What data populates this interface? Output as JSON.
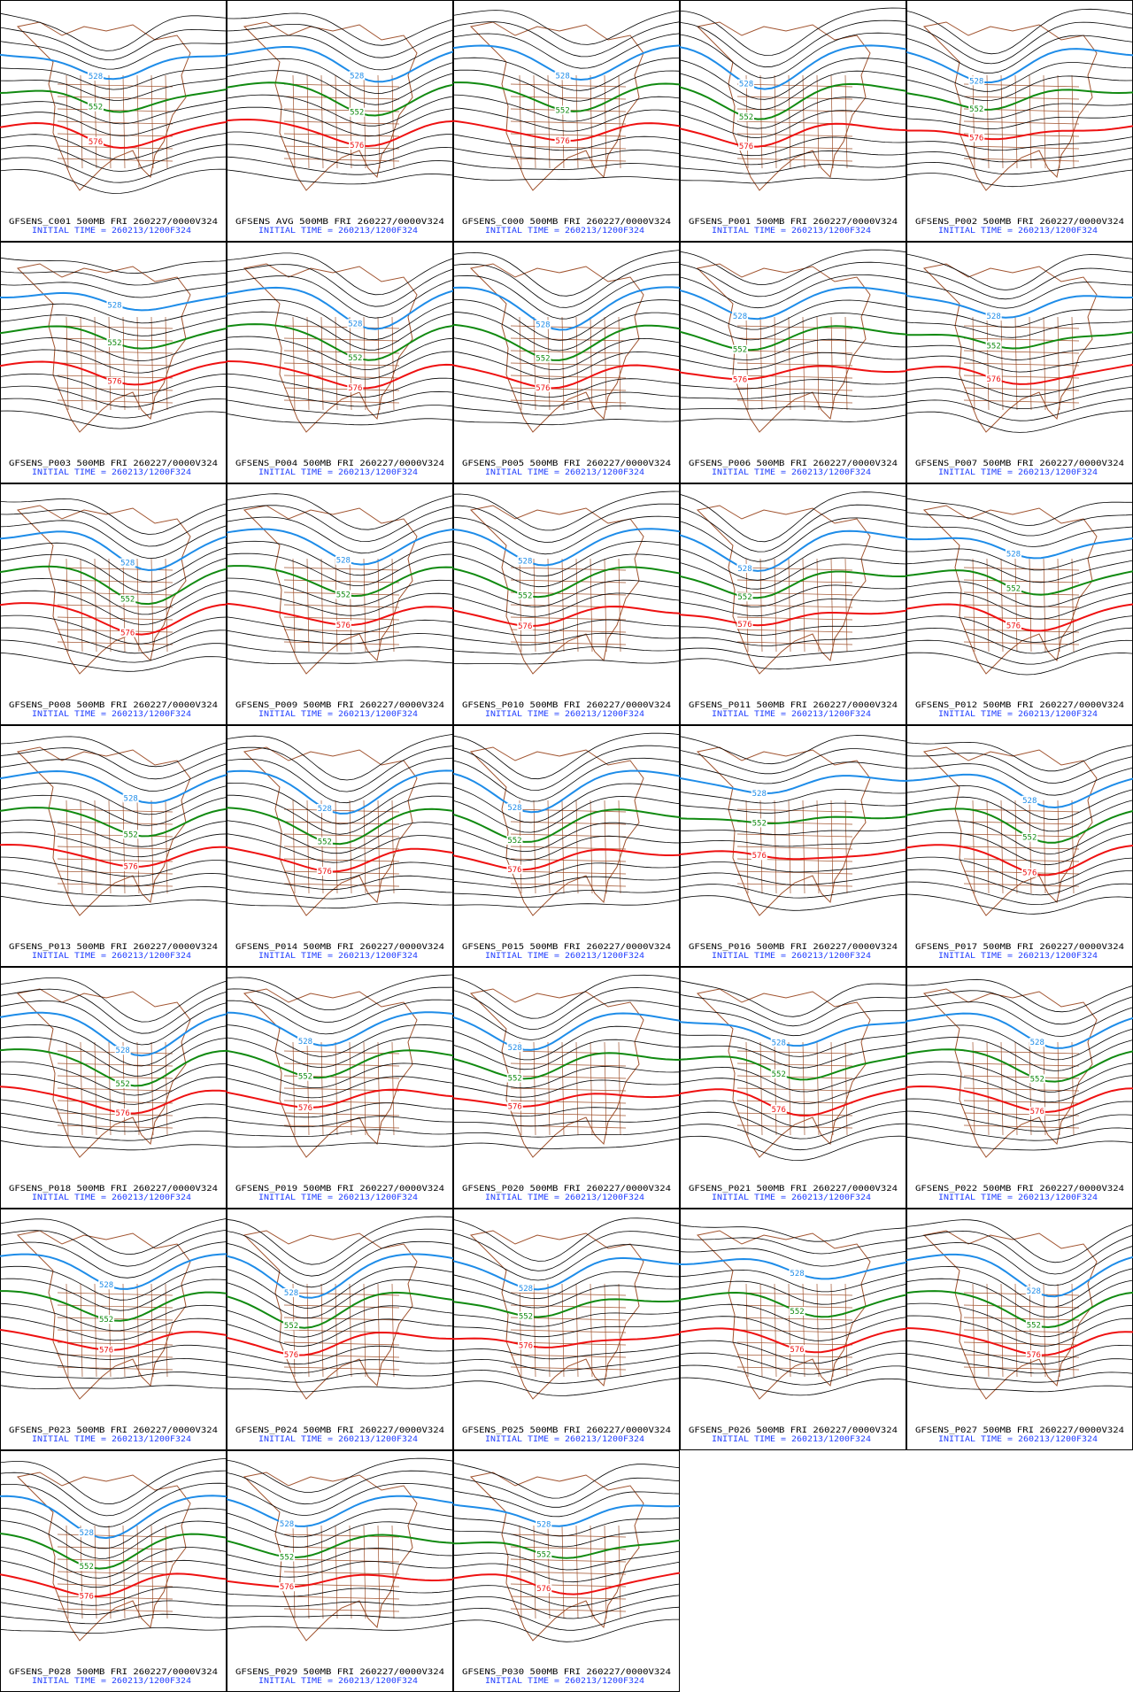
{
  "panels": [
    {
      "title": "GFSENS_C001 500MB FRI 260227/0000V324",
      "init": "INITIAL TIME = 260213/1200F324",
      "contours": [
        528,
        552,
        576
      ]
    },
    {
      "title": "GFSENS AVG 500MB FRI 260227/0000V324",
      "init": "INITIAL TIME = 260213/1200F324",
      "contours": [
        528,
        552,
        576
      ]
    },
    {
      "title": "GFSENS_C000 500MB FRI 260227/0000V324",
      "init": "INITIAL TIME = 260213/1200F324",
      "contours": [
        528,
        552,
        576
      ]
    },
    {
      "title": "GFSENS_P001 500MB FRI 260227/0000V324",
      "init": "INITIAL TIME = 260213/1200F324",
      "contours": [
        528,
        552,
        576
      ]
    },
    {
      "title": "GFSENS_P002 500MB FRI 260227/0000V324",
      "init": "INITIAL TIME = 260213/1200F324",
      "contours": [
        528,
        552,
        576
      ]
    },
    {
      "title": "GFSENS_P003 500MB FRI 260227/0000V324",
      "init": "INITIAL TIME = 260213/1200F324",
      "contours": [
        528,
        552,
        576
      ]
    },
    {
      "title": "GFSENS_P004 500MB FRI 260227/0000V324",
      "init": "INITIAL TIME = 260213/1200F324",
      "contours": [
        528,
        552,
        576
      ]
    },
    {
      "title": "GFSENS_P005 500MB FRI 260227/0000V324",
      "init": "INITIAL TIME = 260213/1200F324",
      "contours": [
        528,
        552,
        576
      ]
    },
    {
      "title": "GFSENS_P006 500MB FRI 260227/0000V324",
      "init": "INITIAL TIME = 260213/1200F324",
      "contours": [
        528,
        552,
        576
      ]
    },
    {
      "title": "GFSENS_P007 500MB FRI 260227/0000V324",
      "init": "INITIAL TIME = 260213/1200F324",
      "contours": [
        528,
        552,
        576
      ]
    },
    {
      "title": "GFSENS_P008 500MB FRI 260227/0000V324",
      "init": "INITIAL TIME = 260213/1200F324",
      "contours": [
        528,
        552,
        576
      ]
    },
    {
      "title": "GFSENS_P009 500MB FRI 260227/0000V324",
      "init": "INITIAL TIME = 260213/1200F324",
      "contours": [
        528,
        552,
        576
      ]
    },
    {
      "title": "GFSENS_P010 500MB FRI 260227/0000V324",
      "init": "INITIAL TIME = 260213/1200F324",
      "contours": [
        528,
        552,
        576
      ]
    },
    {
      "title": "GFSENS_P011 500MB FRI 260227/0000V324",
      "init": "INITIAL TIME = 260213/1200F324",
      "contours": [
        528,
        552,
        576
      ]
    },
    {
      "title": "GFSENS_P012 500MB FRI 260227/0000V324",
      "init": "INITIAL TIME = 260213/1200F324",
      "contours": [
        528,
        552,
        576
      ]
    },
    {
      "title": "GFSENS_P013 500MB FRI 260227/0000V324",
      "init": "INITIAL TIME = 260213/1200F324",
      "contours": [
        528,
        552,
        576
      ]
    },
    {
      "title": "GFSENS_P014 500MB FRI 260227/0000V324",
      "init": "INITIAL TIME = 260213/1200F324",
      "contours": [
        528,
        552,
        576
      ]
    },
    {
      "title": "GFSENS_P015 500MB FRI 260227/0000V324",
      "init": "INITIAL TIME = 260213/1200F324",
      "contours": [
        528,
        552,
        576
      ]
    },
    {
      "title": "GFSENS_P016 500MB FRI 260227/0000V324",
      "init": "INITIAL TIME = 260213/1200F324",
      "contours": [
        528,
        552,
        576
      ]
    },
    {
      "title": "GFSENS_P017 500MB FRI 260227/0000V324",
      "init": "INITIAL TIME = 260213/1200F324",
      "contours": [
        528,
        552,
        576
      ]
    },
    {
      "title": "GFSENS_P018 500MB FRI 260227/0000V324",
      "init": "INITIAL TIME = 260213/1200F324",
      "contours": [
        528,
        552,
        576
      ]
    },
    {
      "title": "GFSENS_P019 500MB FRI 260227/0000V324",
      "init": "INITIAL TIME = 260213/1200F324",
      "contours": [
        528,
        552,
        576
      ]
    },
    {
      "title": "GFSENS_P020 500MB FRI 260227/0000V324",
      "init": "INITIAL TIME = 260213/1200F324",
      "contours": [
        528,
        552,
        576
      ]
    },
    {
      "title": "GFSENS_P021 500MB FRI 260227/0000V324",
      "init": "INITIAL TIME = 260213/1200F324",
      "contours": [
        528,
        552,
        576
      ]
    },
    {
      "title": "GFSENS_P022 500MB FRI 260227/0000V324",
      "init": "INITIAL TIME = 260213/1200F324",
      "contours": [
        528,
        552,
        576
      ]
    },
    {
      "title": "GFSENS_P023 500MB FRI 260227/0000V324",
      "init": "INITIAL TIME = 260213/1200F324",
      "contours": [
        528,
        552,
        576
      ]
    },
    {
      "title": "GFSENS_P024 500MB FRI 260227/0000V324",
      "init": "INITIAL TIME = 260213/1200F324",
      "contours": [
        528,
        552,
        576
      ]
    },
    {
      "title": "GFSENS_P025 500MB FRI 260227/0000V324",
      "init": "INITIAL TIME = 260213/1200F324",
      "contours": [
        528,
        552,
        576
      ]
    },
    {
      "title": "GFSENS_P026 500MB FRI 260227/0000V324",
      "init": "INITIAL TIME = 260213/1200F324",
      "contours": [
        528,
        552,
        576
      ]
    },
    {
      "title": "GFSENS_P027 500MB FRI 260227/0000V324",
      "init": "INITIAL TIME = 260213/1200F324",
      "contours": [
        528,
        552,
        576
      ]
    },
    {
      "title": "GFSENS_P028 500MB FRI 260227/0000V324",
      "init": "INITIAL TIME = 260213/1200F324",
      "contours": [
        528,
        552,
        576
      ]
    },
    {
      "title": "GFSENS_P029 500MB FRI 260227/0000V324",
      "init": "INITIAL TIME = 260213/1200F324",
      "contours": [
        528,
        552,
        576
      ]
    },
    {
      "title": "GFSENS_P030 500MB FRI 260227/0000V324",
      "init": "INITIAL TIME = 260213/1200F324",
      "contours": [
        528,
        552,
        576
      ]
    }
  ]
}
